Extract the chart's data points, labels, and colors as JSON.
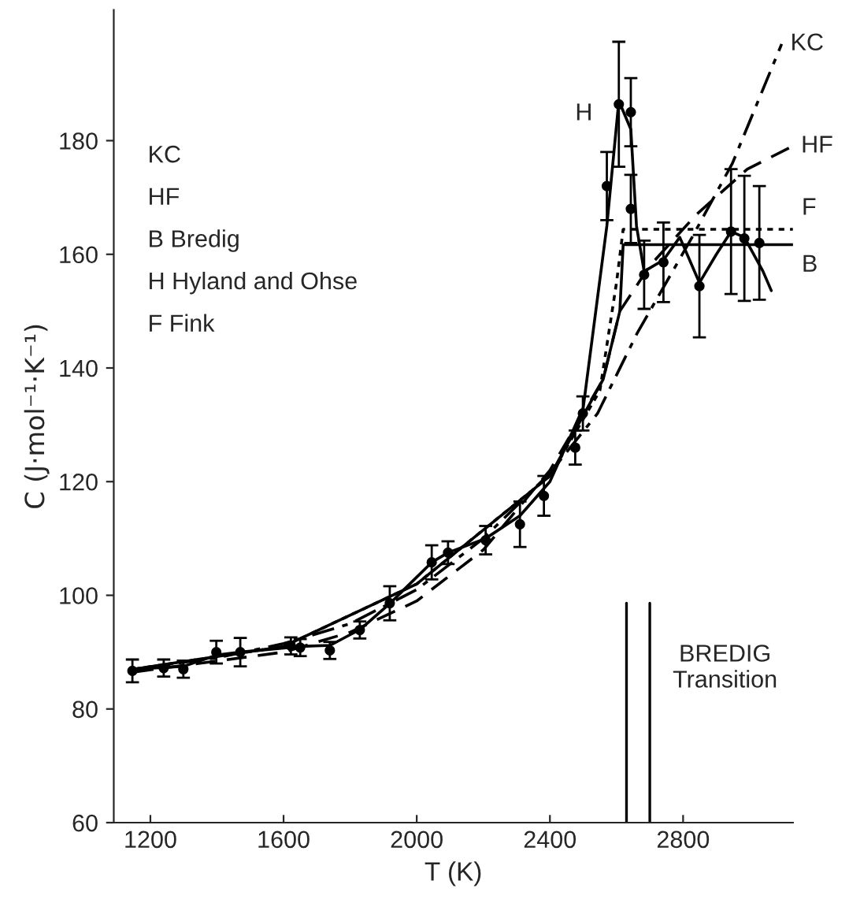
{
  "chart_data": {
    "type": "line",
    "xlabel": "T (K)",
    "ylabel": "C (J·mol⁻¹·K⁻¹)",
    "xlim": [
      1090,
      3130
    ],
    "ylim": [
      60,
      203
    ],
    "xticks": [
      1200,
      1600,
      2000,
      2400,
      2800
    ],
    "yticks": [
      60,
      80,
      100,
      120,
      140,
      160,
      180
    ],
    "grid": false,
    "legend": false,
    "marker": "none",
    "series": [
      {
        "name": "KC",
        "color": "#000000",
        "line_style": "dashdot",
        "x": [
          1150,
          1400,
          1600,
          1800,
          2000,
          2200,
          2400,
          2543,
          2661,
          2827,
          2948,
          3096
        ],
        "values": [
          87,
          89,
          91.5,
          95,
          101,
          110,
          121.5,
          132,
          146,
          163,
          176,
          197
        ]
      },
      {
        "name": "HF",
        "color": "#000000",
        "line_style": "dashed",
        "x": [
          1150,
          1600,
          1800,
          2000,
          2200,
          2400,
          2560,
          2610,
          2700,
          2840,
          2993,
          3128
        ],
        "values": [
          86.5,
          90,
          93.5,
          99,
          108,
          122,
          138,
          150,
          158,
          167,
          175,
          179
        ]
      },
      {
        "name": "F",
        "color": "#000000",
        "line_style": "dotted",
        "x": [
          1150,
          1600,
          2000,
          2400,
          2550,
          2600,
          2620,
          3130
        ],
        "values": [
          87,
          91,
          102,
          121,
          136,
          155,
          164.4,
          164.4
        ]
      },
      {
        "name": "B",
        "color": "#000000",
        "line_style": "solid",
        "x": [
          1150,
          1600,
          2000,
          2400,
          2560,
          2610,
          2620,
          3130
        ],
        "values": [
          87,
          91,
          102,
          121,
          138,
          150,
          161.7,
          161.7
        ]
      },
      {
        "name": "H",
        "color": "#000000",
        "line_style": "solid",
        "x": [
          1150,
          1300,
          1400,
          1470,
          1650,
          1740,
          1830,
          1920,
          2045,
          2094,
          2207,
          2310,
          2400,
          2500,
          2571,
          2607,
          2643,
          2660,
          2683,
          2741,
          2790,
          2849,
          2900,
          2944,
          2984,
          3040,
          3065
        ],
        "values": [
          87,
          87.5,
          89.5,
          90,
          91,
          91.2,
          94,
          98.6,
          105.8,
          107.5,
          110,
          114,
          120,
          133,
          165,
          187,
          182,
          165,
          157,
          159,
          163,
          155,
          160,
          164,
          163,
          157,
          153.6
        ]
      },
      {
        "type": "scatter",
        "color": "#000000",
        "marker": "circle",
        "x": [
          1146,
          1240,
          1299,
          1398,
          1470,
          1622,
          1650,
          1739,
          1829,
          1919,
          2045,
          2094,
          2207,
          2310,
          2382,
          2476,
          2499,
          2571,
          2607,
          2643,
          2643,
          2683,
          2741,
          2849,
          2944,
          2984,
          3029
        ],
        "values": [
          86.7,
          87.2,
          87,
          90,
          90,
          91.1,
          90.8,
          90.3,
          93.9,
          98.6,
          105.8,
          107.5,
          109.7,
          112.5,
          117.5,
          126,
          132,
          172,
          186.4,
          185,
          168,
          156.4,
          158.6,
          154.4,
          164,
          162.8,
          162
        ],
        "errors": [
          2,
          1.5,
          1.5,
          2,
          2.5,
          1.5,
          1.5,
          1.5,
          1.5,
          3,
          3,
          2,
          2.5,
          4,
          3.5,
          3,
          3,
          6,
          11,
          6,
          6,
          6,
          7,
          9,
          11,
          11,
          10
        ]
      }
    ],
    "ref_lines": [
      {
        "axis": "x",
        "value": 2630,
        "color": "#000000"
      },
      {
        "axis": "x",
        "value": 2700,
        "color": "#000000"
      }
    ],
    "annotations": [
      "KC",
      "HF",
      "B Bredig",
      "H Hyland and Ohse",
      "F Fink",
      "BREDIG\nTransition"
    ]
  }
}
